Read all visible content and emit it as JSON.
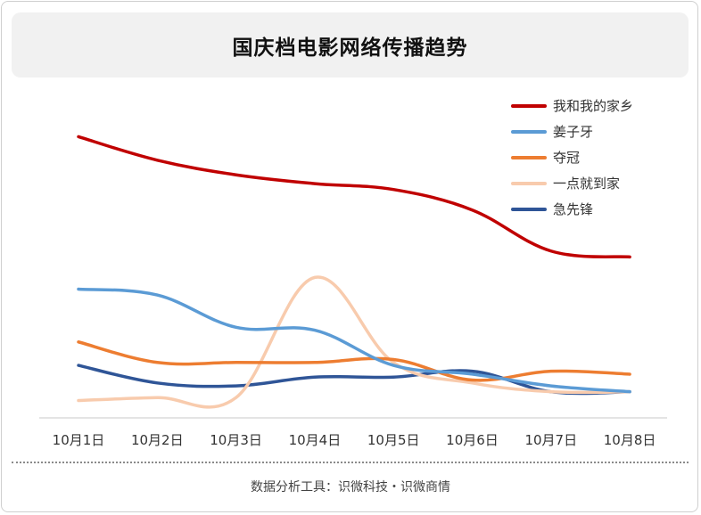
{
  "title": "国庆档电影网络传播趋势",
  "source": "数据分析工具：识微科技・识微商情",
  "chart_data": {
    "type": "line",
    "categories": [
      "10月1日",
      "10月2日",
      "10月3日",
      "10月4日",
      "10月5日",
      "10月6日",
      "10月7日",
      "10月8日"
    ],
    "ylim": [
      0,
      100
    ],
    "grid": false,
    "yaxis_visible": false,
    "legend_position": "top-right",
    "series": [
      {
        "name": "我和我的家乡",
        "color": "#c00000",
        "values": [
          95,
          87,
          82,
          79,
          77,
          70,
          56,
          54
        ]
      },
      {
        "name": "姜子牙",
        "color": "#5b9bd5",
        "values": [
          43,
          41,
          30,
          29,
          17,
          14,
          10,
          8
        ]
      },
      {
        "name": "夺冠",
        "color": "#ed7d31",
        "values": [
          25,
          18,
          18,
          18,
          19,
          12,
          15,
          14
        ]
      },
      {
        "name": "一点就到家",
        "color": "#f8cbad",
        "values": [
          5,
          6,
          6,
          47,
          18,
          11,
          8,
          8
        ]
      },
      {
        "name": "急先锋",
        "color": "#2f5597",
        "values": [
          17,
          11,
          10,
          13,
          13,
          15,
          8,
          8
        ]
      }
    ]
  }
}
